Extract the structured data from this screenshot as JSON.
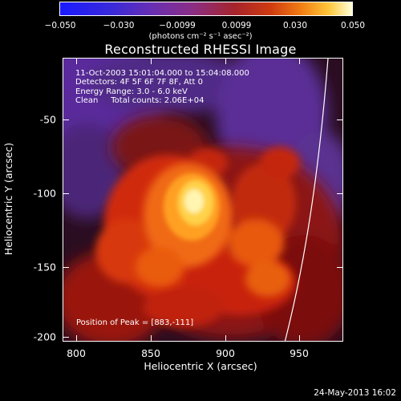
{
  "colorbar": {
    "ticks": [
      "−0.050",
      "−0.030",
      "−0.0099",
      "0.0099",
      "0.030",
      "0.050"
    ],
    "units": "(photons cm⁻² s⁻¹ asec⁻²)"
  },
  "title": "Reconstructed RHESSI Image",
  "info": {
    "line1": "11-Oct-2003 15:01:04.000 to 15:04:08.000",
    "line2": "Detectors: 4F 5F 6F 7F 8F, Att 0",
    "line3": "Energy Range: 3.0 - 6.0 keV",
    "line4": "Clean     Total counts: 2.06E+04"
  },
  "peak": "Position of Peak = [883,-111]",
  "axes": {
    "y_ticks": [
      "-50",
      "-100",
      "-150",
      "-200"
    ],
    "x_ticks": [
      "800",
      "850",
      "900",
      "950"
    ],
    "xlabel": "Heliocentric X (arcsec)",
    "ylabel": "Heliocentric Y (arcsec)"
  },
  "timestamp": "24-May-2013 16:02"
}
